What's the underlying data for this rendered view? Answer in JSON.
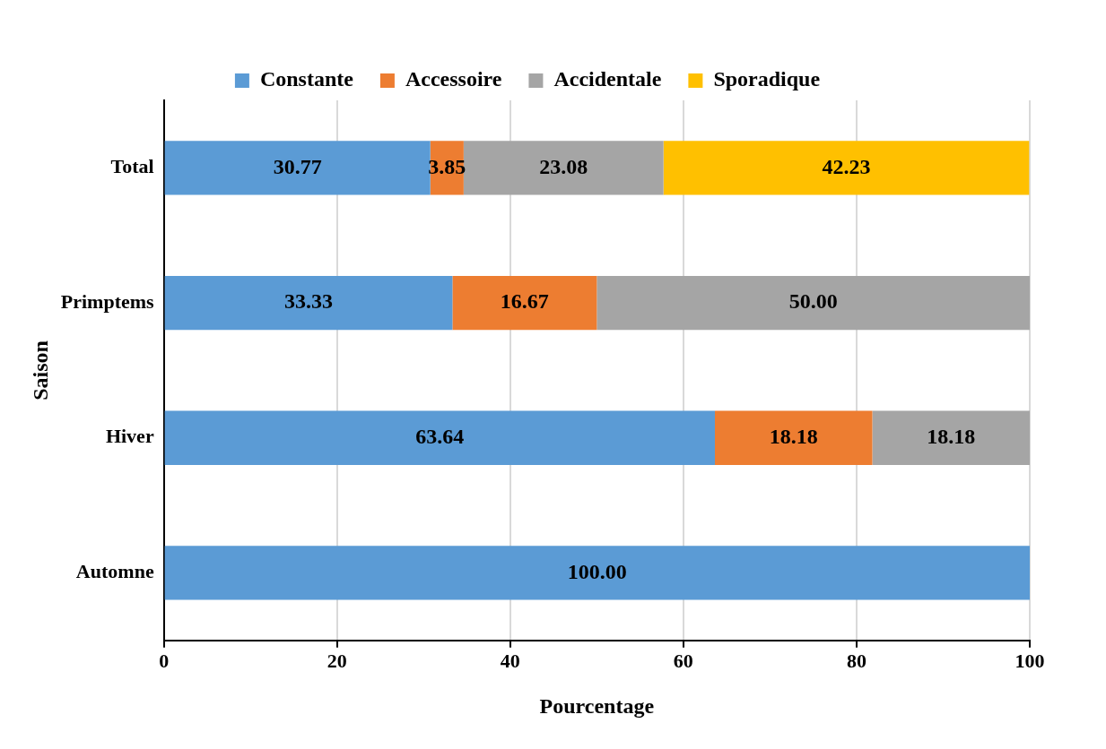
{
  "chart_data": {
    "type": "bar",
    "orientation": "horizontal",
    "stacked": true,
    "xlabel": "Pourcentage",
    "ylabel": "Saison",
    "categories": [
      "Total",
      "Primptems",
      "Hiver",
      "Automne"
    ],
    "series": [
      {
        "name": "Constante",
        "color": "#5b9bd5",
        "values": [
          30.77,
          33.33,
          63.64,
          100
        ],
        "value_labels": [
          "30.77",
          "33.33",
          "63.64",
          "100.00"
        ]
      },
      {
        "name": "Accessoire",
        "color": "#ed7d31",
        "values": [
          3.85,
          16.67,
          18.18,
          null
        ],
        "value_labels": [
          "3.85",
          "16.67",
          "18.18",
          null
        ]
      },
      {
        "name": "Accidentale",
        "color": "#a5a5a5",
        "values": [
          23.08,
          50.0,
          18.18,
          null
        ],
        "value_labels": [
          "23.08",
          "50.00",
          "18.18",
          null
        ]
      },
      {
        "name": "Sporadique",
        "color": "#ffc000",
        "values": [
          42.23,
          null,
          null,
          null
        ],
        "value_labels": [
          "42.23",
          null,
          null,
          null
        ]
      }
    ],
    "xlim": [
      0,
      100
    ],
    "xticks": [
      0,
      20,
      40,
      60,
      80,
      100
    ],
    "grid": "x",
    "legend": "top"
  }
}
